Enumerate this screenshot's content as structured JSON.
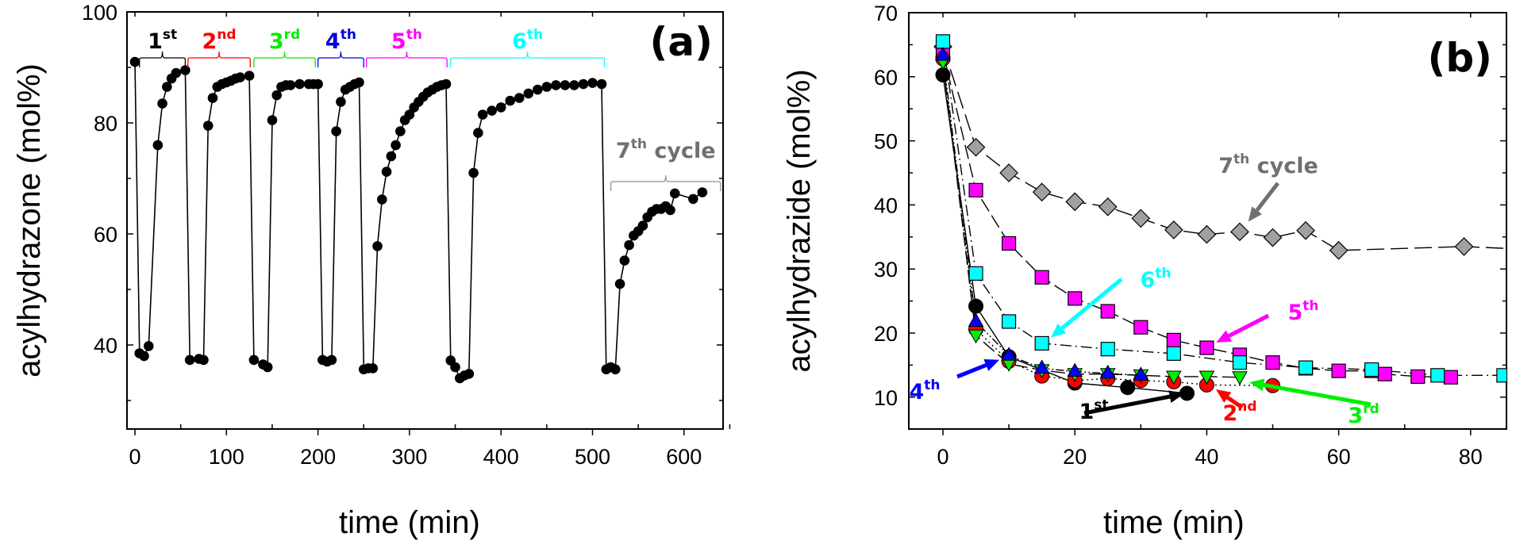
{
  "chart_data": [
    {
      "type": "line",
      "panel": "(a)",
      "title": "",
      "xlabel": "time (min)",
      "ylabel": "acylhydrazone (mol%)",
      "xlim": [
        -5,
        645
      ],
      "ylim": [
        25,
        100
      ],
      "xticks": [
        0,
        100,
        200,
        300,
        400,
        500,
        600
      ],
      "yticks": [
        40,
        60,
        80,
        100
      ],
      "grid": false,
      "marker": "filled circle",
      "color": "#000000",
      "cycle_brackets": [
        {
          "label": "1",
          "sup": "st",
          "color": "#000000",
          "x_range": [
            5,
            55
          ]
        },
        {
          "label": "2",
          "sup": "nd",
          "color": "#ff0000",
          "x_range": [
            58,
            126
          ]
        },
        {
          "label": "3",
          "sup": "rd",
          "color": "#00ee00",
          "x_range": [
            130,
            197
          ]
        },
        {
          "label": "4",
          "sup": "th",
          "color": "#0000dd",
          "x_range": [
            200,
            250
          ]
        },
        {
          "label": "5",
          "sup": "th",
          "color": "#ff00ff",
          "x_range": [
            253,
            341
          ]
        },
        {
          "label": "6",
          "sup": "th",
          "color": "#00ffff",
          "x_range": [
            345,
            513
          ]
        },
        {
          "label": "7",
          "sup": "th",
          "suffix": " cycle",
          "color": "#707070",
          "x_range": [
            520,
            640
          ]
        }
      ],
      "series": [
        {
          "name": "acylhydrazone",
          "x": [
            0,
            5,
            10,
            15,
            25,
            30,
            35,
            40,
            45,
            55,
            60,
            70,
            75,
            80,
            85,
            90,
            95,
            100,
            105,
            110,
            115,
            125,
            130,
            140,
            145,
            150,
            155,
            160,
            165,
            170,
            180,
            190,
            195,
            200,
            205,
            210,
            215,
            220,
            225,
            230,
            235,
            240,
            245,
            250,
            255,
            260,
            265,
            270,
            275,
            280,
            285,
            290,
            295,
            300,
            305,
            310,
            315,
            320,
            325,
            330,
            335,
            340,
            345,
            350,
            355,
            360,
            365,
            370,
            375,
            380,
            390,
            400,
            410,
            420,
            430,
            440,
            450,
            460,
            470,
            480,
            490,
            500,
            510,
            515,
            520,
            525,
            530,
            535,
            540,
            545,
            550,
            555,
            560,
            565,
            570,
            575,
            580,
            585,
            590,
            610,
            620
          ],
          "y": [
            91,
            38.5,
            38,
            39.8,
            76,
            83.5,
            86.5,
            88,
            89,
            89.5,
            37.3,
            37.5,
            37.3,
            79.5,
            84.5,
            86.5,
            87,
            87.3,
            87.6,
            88,
            88.2,
            88.5,
            37.3,
            36.5,
            36,
            80.5,
            85,
            86.5,
            86.8,
            86.8,
            87,
            87,
            87,
            87,
            37.3,
            37,
            37.3,
            78.5,
            83.8,
            86,
            86.5,
            87,
            87.3,
            35.6,
            35.8,
            35.8,
            57.8,
            66.2,
            71.2,
            74,
            76,
            78.5,
            80.5,
            81.5,
            82.8,
            83.8,
            84.7,
            85.5,
            86,
            86.5,
            86.8,
            87,
            37.2,
            36,
            34,
            34.5,
            34.8,
            71,
            78.2,
            81.5,
            82.2,
            82.8,
            84,
            84.5,
            85.3,
            86,
            86.5,
            86.8,
            86.8,
            86.8,
            87,
            87.2,
            87,
            35.6,
            36,
            35.6,
            51,
            55.2,
            58,
            59.7,
            60.5,
            61.5,
            63,
            64,
            64.5,
            64.5,
            65,
            64.3,
            67.3,
            66.3,
            67.5
          ]
        }
      ]
    },
    {
      "type": "line",
      "panel": "(b)",
      "title": "",
      "xlabel": "time (min)",
      "ylabel": "acylhydrazide (mol%)",
      "xlim": [
        -5,
        85
      ],
      "ylim": [
        5,
        70
      ],
      "xticks": [
        0,
        20,
        40,
        60,
        80
      ],
      "yticks": [
        10,
        20,
        30,
        40,
        50,
        60,
        70
      ],
      "grid": false,
      "series": [
        {
          "name": "1st",
          "color": "#000000",
          "marker": "circle",
          "line": "solid",
          "x": [
            0,
            5,
            10,
            20,
            28,
            37
          ],
          "y": [
            60.3,
            24.2,
            16.3,
            12.2,
            11.5,
            10.6
          ]
        },
        {
          "name": "2nd",
          "color": "#ff0000",
          "marker": "circle",
          "line": "dotted",
          "x": [
            0,
            5,
            10,
            15,
            20,
            25,
            30,
            35,
            40,
            50
          ],
          "y": [
            62.8,
            20.6,
            15.6,
            13.3,
            12.6,
            12.9,
            12.6,
            12.4,
            11.9,
            11.8
          ]
        },
        {
          "name": "3rd",
          "color": "#00ee00",
          "marker": "triangle-down",
          "line": "long-dash",
          "x": [
            0,
            5,
            10,
            15,
            20,
            25,
            30,
            35,
            40,
            45
          ],
          "y": [
            62.3,
            19.6,
            15.2,
            14.2,
            13.6,
            13.6,
            13.4,
            13.2,
            13.2,
            13.1
          ]
        },
        {
          "name": "4th",
          "color": "#0000ff",
          "marker": "triangle-up",
          "line": "dash-dot-dot",
          "x": [
            0,
            5,
            10,
            15,
            20,
            25,
            30
          ],
          "y": [
            63.3,
            21.8,
            16.5,
            14.5,
            14,
            13.7,
            13.4
          ]
        },
        {
          "name": "5th",
          "color": "#ff00ff",
          "marker": "square",
          "line": "long-dash",
          "x": [
            0,
            5,
            10,
            15,
            20,
            25,
            30,
            35,
            40,
            45,
            50,
            55,
            60,
            65,
            67,
            72,
            77
          ],
          "y": [
            63.8,
            42.3,
            34,
            28.7,
            25.4,
            23.4,
            20.9,
            18.9,
            17.7,
            16.6,
            15.4,
            14.5,
            14.1,
            14.1,
            13.6,
            13.2,
            13.1
          ]
        },
        {
          "name": "6th",
          "color": "#00ffff",
          "marker": "square",
          "line": "dash-dot",
          "x": [
            0,
            5,
            10,
            15,
            25,
            35,
            45,
            55,
            65,
            75,
            85
          ],
          "y": [
            65.5,
            29.3,
            21.8,
            18.4,
            17.5,
            16.8,
            15.4,
            14.6,
            14.3,
            13.4,
            13.4
          ]
        },
        {
          "name": "7th cycle",
          "color": "#a0a0a0",
          "marker": "diamond",
          "line": "dashed",
          "x": [
            0,
            5,
            10,
            15,
            20,
            25,
            30,
            35,
            40,
            45,
            50,
            55,
            60,
            79,
            90
          ],
          "y": [
            64.7,
            49,
            45,
            42,
            40.5,
            39.7,
            37.9,
            36.1,
            35.4,
            35.8,
            34.9,
            36,
            32.9,
            33.5,
            33
          ]
        }
      ],
      "annotations": [
        {
          "label": "1",
          "sup": "st",
          "color": "#000000",
          "points_to": [
            37,
            10.6
          ]
        },
        {
          "label": "2",
          "sup": "nd",
          "color": "#ff0000",
          "points_to": [
            41,
            11.5
          ]
        },
        {
          "label": "3",
          "sup": "rd",
          "color": "#00ee00",
          "points_to": [
            46,
            12.4
          ]
        },
        {
          "label": "4",
          "sup": "th",
          "color": "#0000ff",
          "points_to": [
            9,
            16
          ]
        },
        {
          "label": "5",
          "sup": "th",
          "color": "#ff00ff",
          "points_to": [
            41,
            18.3
          ]
        },
        {
          "label": "6",
          "sup": "th",
          "color": "#00ffff",
          "points_to": [
            16,
            19
          ]
        },
        {
          "label": "7",
          "sup": "th",
          "suffix": " cycle",
          "color": "#707070",
          "points_to": [
            46,
            37
          ]
        }
      ]
    }
  ]
}
